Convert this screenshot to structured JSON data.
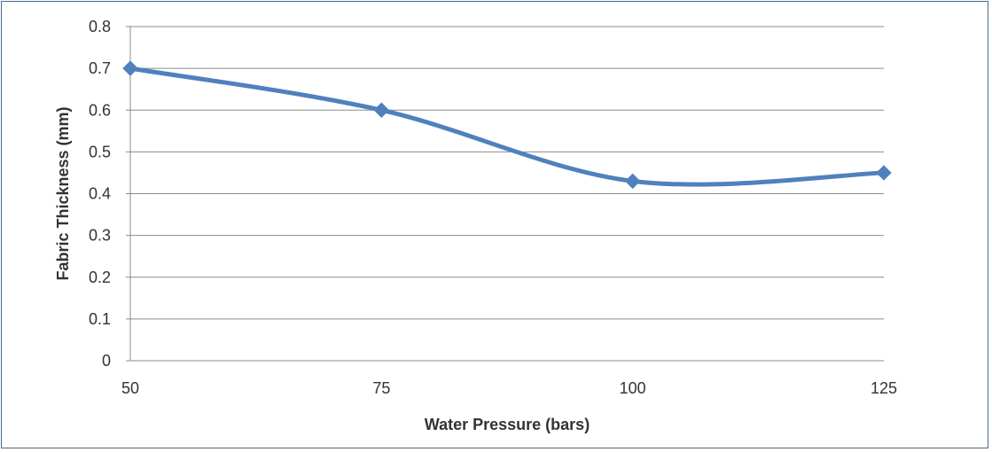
{
  "chart_data": {
    "type": "line",
    "title": "",
    "xlabel": "Water Pressure (bars)",
    "ylabel": "Fabric Thickness (mm)",
    "x": [
      50,
      75,
      100,
      125
    ],
    "x_tick_labels": [
      "50",
      "75",
      "100",
      "125"
    ],
    "y_tick_labels": [
      "0",
      "0.1",
      "0.2",
      "0.3",
      "0.4",
      "0.5",
      "0.6",
      "0.7",
      "0.8"
    ],
    "ylim": [
      0,
      0.8
    ],
    "xlim": [
      50,
      125
    ],
    "grid": "horizontal",
    "smooth": true,
    "marker": "diamond",
    "series": [
      {
        "values": [
          0.7,
          0.6,
          0.43,
          0.45
        ]
      }
    ],
    "colors": {
      "series": "#4f81bd",
      "marker": "#4f81bd",
      "grid": "#8c8c8c",
      "frame": "#4a6a8c"
    }
  }
}
